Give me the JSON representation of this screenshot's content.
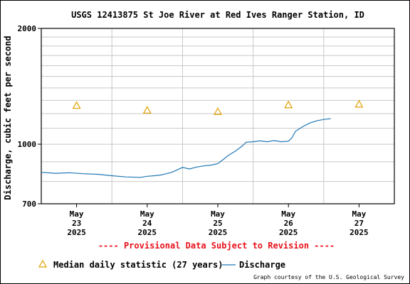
{
  "chart_data": {
    "type": "line",
    "title": "USGS 12413875 St Joe River at Red Ives Ranger Station, ID",
    "ylabel": "Discharge, cubic feet per second",
    "y_scale": "log",
    "ylim": [
      700,
      2000
    ],
    "y_ticks": [
      "2000",
      "1000",
      "700"
    ],
    "y_tick_values": [
      2000,
      1000,
      700
    ],
    "x_ticks": [
      {
        "day": 23,
        "month": "May",
        "dd": "23",
        "year": "2025"
      },
      {
        "day": 24,
        "month": "May",
        "dd": "24",
        "year": "2025"
      },
      {
        "day": 25,
        "month": "May",
        "dd": "25",
        "year": "2025"
      },
      {
        "day": 26,
        "month": "May",
        "dd": "26",
        "year": "2025"
      },
      {
        "day": 27,
        "month": "May",
        "dd": "27",
        "year": "2025"
      }
    ],
    "xlim_days": [
      22.5,
      27.5
    ],
    "grid": true,
    "series": [
      {
        "name": "Discharge",
        "color": "#1f77b4",
        "x_days": [
          22.5,
          22.7,
          22.9,
          23.1,
          23.3,
          23.5,
          23.7,
          23.9,
          24.0,
          24.1,
          24.2,
          24.35,
          24.5,
          24.6,
          24.7,
          24.8,
          24.9,
          25.0,
          25.05,
          25.15,
          25.25,
          25.35,
          25.4,
          25.5,
          25.6,
          25.7,
          25.8,
          25.9,
          26.0,
          26.05,
          26.1,
          26.2,
          26.3,
          26.4,
          26.5,
          26.6
        ],
        "values": [
          845,
          840,
          843,
          838,
          835,
          828,
          822,
          820,
          825,
          828,
          832,
          845,
          870,
          862,
          872,
          878,
          882,
          890,
          905,
          935,
          960,
          990,
          1012,
          1015,
          1020,
          1015,
          1022,
          1015,
          1018,
          1040,
          1080,
          1110,
          1135,
          1150,
          1160,
          1165
        ]
      },
      {
        "name": "Median daily statistic (27 years)",
        "color": "#e0a000",
        "x_days": [
          23.0,
          24.0,
          25.0,
          26.0,
          27.0
        ],
        "values": [
          1260,
          1225,
          1215,
          1265,
          1270
        ]
      }
    ],
    "provisional_note": "---- Provisional Data Subject to Revision ----",
    "legend": {
      "placement": "bottom-left",
      "median_label": "Median daily statistic (27 years)",
      "discharge_label": "Discharge"
    },
    "credit": "Graph courtesy of the U.S. Geological Survey"
  }
}
